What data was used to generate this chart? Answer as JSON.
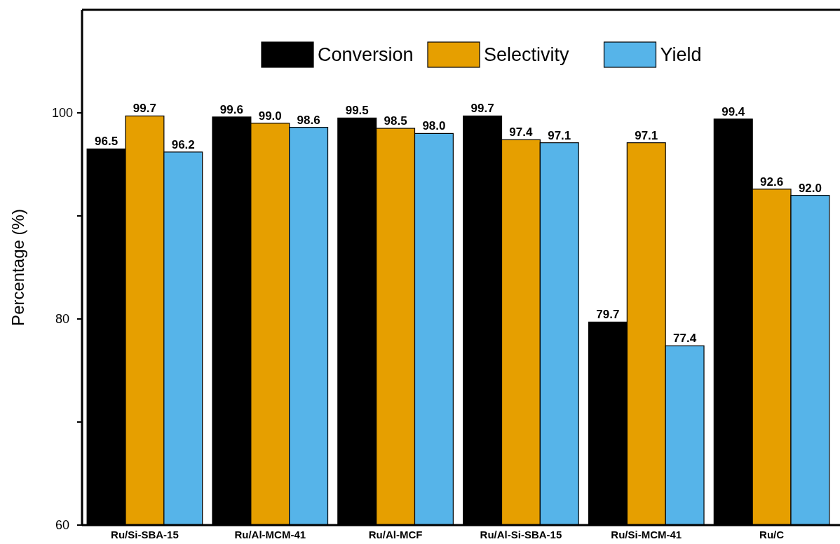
{
  "chart_data": {
    "type": "bar",
    "ylabel": "Percentage (%)",
    "categories": [
      "Ru/Si-SBA-15",
      "Ru/Al-MCM-41",
      "Ru/Al-MCF",
      "Ru/Al-Si-SBA-15",
      "Ru/Si-MCM-41",
      "Ru/C"
    ],
    "series": [
      {
        "name": "Conversion",
        "color": "#000000",
        "values": [
          96.5,
          99.6,
          99.5,
          99.7,
          79.7,
          99.4
        ],
        "value_labels": [
          "96.5",
          "99.6",
          "99.5",
          "99.7",
          "79.7",
          "99.4"
        ]
      },
      {
        "name": "Selectivity",
        "color": "#e69f00",
        "values": [
          99.7,
          99.0,
          98.5,
          97.4,
          97.1,
          92.6
        ],
        "value_labels": [
          "99.7",
          "99.0",
          "98.5",
          "97.4",
          "97.1",
          "92.6"
        ]
      },
      {
        "name": "Yield",
        "color": "#56b4e9",
        "values": [
          96.2,
          98.6,
          98.0,
          97.1,
          77.4,
          92.0
        ],
        "value_labels": [
          "96.2",
          "98.6",
          "98.0",
          "97.1",
          "77.4",
          "92.0"
        ]
      }
    ],
    "ylim": [
      60,
      110
    ],
    "yticks": [
      60,
      {
        "value": 70,
        "label": null
      },
      80,
      {
        "value": 90,
        "label": null
      },
      100
    ],
    "legend": "top",
    "grid": false
  }
}
